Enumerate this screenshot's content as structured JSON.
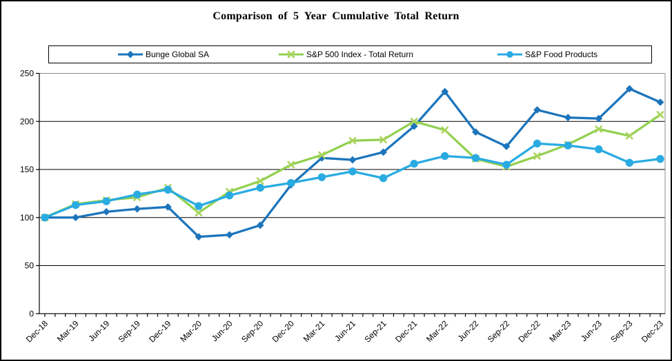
{
  "title": "Comparison of 5 Year Cumulative Total Return",
  "legend": {
    "position": "top",
    "items": [
      {
        "label": "Bunge Global SA",
        "marker": "diamond"
      },
      {
        "label": "S&P 500 Index - Total Return",
        "marker": "x"
      },
      {
        "label": "S&P Food Products",
        "marker": "circle"
      }
    ]
  },
  "axes": {
    "y_ticks": [
      "0",
      "50",
      "100",
      "150",
      "200",
      "250"
    ],
    "x_minor_ticks_per_interval": 3
  },
  "colors": {
    "bunge_blue": "#1C75BC",
    "sp500_green": "#92D050",
    "sp500_marker_green": "#ABD45F",
    "food_cyan": "#29ABE2",
    "axis_black": "#000000",
    "frame_gray": "#8C8C8C",
    "background": "#FFFFFF"
  },
  "chart_data": {
    "type": "line",
    "title": "Comparison of 5 Year Cumulative Total Return",
    "xlabel": "",
    "ylabel": "",
    "ylim": [
      0,
      250
    ],
    "ytick_step": 50,
    "grid": "horizontal",
    "legend_position": "top",
    "x": [
      "Dec-18",
      "Mar-19",
      "Jun-19",
      "Sep-19",
      "Dec-19",
      "Mar-20",
      "Jun-20",
      "Sep-20",
      "Dec-20",
      "Mar-21",
      "Jun-21",
      "Sep-21",
      "Dec-21",
      "Mar-22",
      "Jun-22",
      "Sep-22",
      "Dec-22",
      "Mar-23",
      "Jun-23",
      "Sep-23",
      "Dec-23"
    ],
    "series": [
      {
        "name": "Bunge Global SA",
        "marker": "diamond",
        "color": "#1C75BC",
        "marker_color": "#1C75BC",
        "values": [
          100,
          100,
          106,
          109,
          111,
          80,
          82,
          92,
          134,
          162,
          160,
          168,
          195,
          231,
          189,
          174,
          212,
          204,
          203,
          234,
          220
        ]
      },
      {
        "name": "S&P 500 Index - Total Return",
        "marker": "x",
        "color": "#92D050",
        "marker_color": "#ABD45F",
        "values": [
          100,
          114,
          118,
          121,
          131,
          105,
          127,
          138,
          155,
          165,
          180,
          181,
          200,
          191,
          161,
          153,
          164,
          176,
          192,
          185,
          207
        ]
      },
      {
        "name": "S&P Food Products",
        "marker": "circle",
        "color": "#29ABE2",
        "marker_color": "#29ABE2",
        "values": [
          100,
          113,
          117,
          124,
          129,
          112,
          123,
          131,
          136,
          142,
          148,
          141,
          156,
          164,
          162,
          155,
          177,
          175,
          171,
          157,
          161
        ]
      }
    ]
  }
}
